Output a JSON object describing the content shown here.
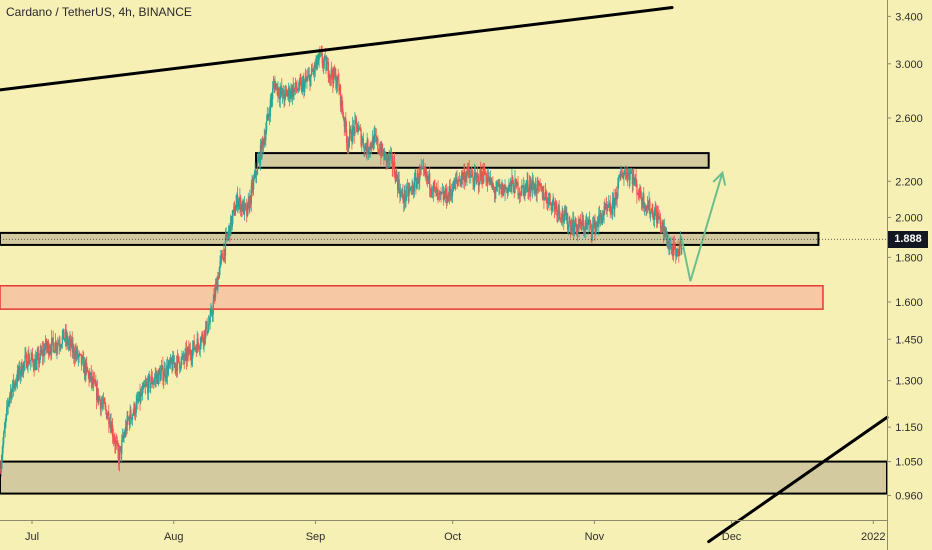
{
  "header": {
    "title": "Cardano / TetherUS, 4h, BINANCE"
  },
  "last_price": "1.888",
  "colors": {
    "background": "#f7f0b5",
    "up_candle": "#26a69a",
    "down_candle": "#ef5350",
    "zone_fill": "#d3cb9f",
    "zone_border": "#000000",
    "red_zone_fill": "#f6c9a4",
    "red_zone_border": "#e53935",
    "projection": "#6cbf8d",
    "trendline": "#000000"
  },
  "chart_data": {
    "type": "candlestick",
    "title": "Cardano / TetherUS, 4h, BINANCE",
    "x_axis": {
      "type": "date",
      "range": [
        "2021-06-24",
        "2022-01-04"
      ],
      "tick_labels": [
        {
          "label": "Jul",
          "date": "2021-07-01"
        },
        {
          "label": "Aug",
          "date": "2021-08-01"
        },
        {
          "label": "Sep",
          "date": "2021-09-01"
        },
        {
          "label": "Oct",
          "date": "2021-10-01"
        },
        {
          "label": "Nov",
          "date": "2021-11-01"
        },
        {
          "label": "Dec",
          "date": "2021-12-01"
        },
        {
          "label": "2022",
          "date": "2022-01-01"
        }
      ]
    },
    "y_axis": {
      "scale": "log",
      "range": [
        0.9,
        3.55
      ],
      "tick_labels": [
        "3.400",
        "3.000",
        "2.600",
        "2.200",
        "2.000",
        "1.800",
        "1.600",
        "1.450",
        "1.300",
        "1.150",
        "1.050",
        "0.960"
      ],
      "tick_values": [
        3.4,
        3.0,
        2.6,
        2.2,
        2.0,
        1.8,
        1.6,
        1.45,
        1.3,
        1.15,
        1.05,
        0.96
      ]
    },
    "price_path": [
      [
        "2021-06-24",
        1.03
      ],
      [
        "2021-06-26",
        1.25
      ],
      [
        "2021-06-28",
        1.32
      ],
      [
        "2021-06-30",
        1.38
      ],
      [
        "2021-07-02",
        1.36
      ],
      [
        "2021-07-04",
        1.42
      ],
      [
        "2021-07-06",
        1.43
      ],
      [
        "2021-07-08",
        1.46
      ],
      [
        "2021-07-10",
        1.41
      ],
      [
        "2021-07-12",
        1.36
      ],
      [
        "2021-07-14",
        1.3
      ],
      [
        "2021-07-16",
        1.23
      ],
      [
        "2021-07-18",
        1.18
      ],
      [
        "2021-07-20",
        1.06
      ],
      [
        "2021-07-22",
        1.17
      ],
      [
        "2021-07-24",
        1.22
      ],
      [
        "2021-07-26",
        1.28
      ],
      [
        "2021-07-28",
        1.31
      ],
      [
        "2021-07-30",
        1.33
      ],
      [
        "2021-08-01",
        1.36
      ],
      [
        "2021-08-03",
        1.37
      ],
      [
        "2021-08-05",
        1.41
      ],
      [
        "2021-08-07",
        1.45
      ],
      [
        "2021-08-09",
        1.52
      ],
      [
        "2021-08-11",
        1.75
      ],
      [
        "2021-08-13",
        1.92
      ],
      [
        "2021-08-15",
        2.1
      ],
      [
        "2021-08-17",
        2.02
      ],
      [
        "2021-08-19",
        2.25
      ],
      [
        "2021-08-21",
        2.5
      ],
      [
        "2021-08-23",
        2.85
      ],
      [
        "2021-08-25",
        2.75
      ],
      [
        "2021-08-27",
        2.8
      ],
      [
        "2021-08-29",
        2.82
      ],
      [
        "2021-08-31",
        2.9
      ],
      [
        "2021-09-02",
        3.05
      ],
      [
        "2021-09-04",
        2.95
      ],
      [
        "2021-09-06",
        2.85
      ],
      [
        "2021-09-08",
        2.45
      ],
      [
        "2021-09-10",
        2.55
      ],
      [
        "2021-09-12",
        2.4
      ],
      [
        "2021-09-14",
        2.45
      ],
      [
        "2021-09-16",
        2.35
      ],
      [
        "2021-09-18",
        2.3
      ],
      [
        "2021-09-20",
        2.1
      ],
      [
        "2021-09-22",
        2.15
      ],
      [
        "2021-09-24",
        2.25
      ],
      [
        "2021-09-26",
        2.2
      ],
      [
        "2021-09-28",
        2.1
      ],
      [
        "2021-09-30",
        2.12
      ],
      [
        "2021-10-02",
        2.2
      ],
      [
        "2021-10-04",
        2.25
      ],
      [
        "2021-10-06",
        2.2
      ],
      [
        "2021-10-08",
        2.25
      ],
      [
        "2021-10-10",
        2.15
      ],
      [
        "2021-10-12",
        2.15
      ],
      [
        "2021-10-14",
        2.18
      ],
      [
        "2021-10-16",
        2.15
      ],
      [
        "2021-10-18",
        2.18
      ],
      [
        "2021-10-20",
        2.15
      ],
      [
        "2021-10-22",
        2.1
      ],
      [
        "2021-10-24",
        2.05
      ],
      [
        "2021-10-26",
        1.98
      ],
      [
        "2021-10-28",
        1.95
      ],
      [
        "2021-10-30",
        1.96
      ],
      [
        "2021-11-01",
        1.95
      ],
      [
        "2021-11-03",
        2.02
      ],
      [
        "2021-11-05",
        2.05
      ],
      [
        "2021-11-07",
        2.25
      ],
      [
        "2021-11-09",
        2.25
      ],
      [
        "2021-11-11",
        2.12
      ],
      [
        "2021-11-13",
        2.05
      ],
      [
        "2021-11-15",
        2.0
      ],
      [
        "2021-11-17",
        1.88
      ],
      [
        "2021-11-19",
        1.8
      ],
      [
        "2021-11-20",
        1.88
      ]
    ],
    "annotations": {
      "zones": [
        {
          "name": "upper-resistance-zone",
          "from": "2021-08-19",
          "to": "2021-11-26",
          "top": 2.37,
          "bottom": 2.28,
          "style": "tan"
        },
        {
          "name": "current-support-zone",
          "from": "2021-06-24",
          "to": "2021-12-20",
          "top": 1.92,
          "bottom": 1.86,
          "style": "tan"
        },
        {
          "name": "demand-zone",
          "from": "2021-06-24",
          "to": "2021-12-21",
          "top": 1.67,
          "bottom": 1.57,
          "style": "red"
        },
        {
          "name": "bottom-support-zone",
          "from": "2021-06-24",
          "to": "2022-01-04",
          "top": 1.05,
          "bottom": 0.965,
          "style": "tan"
        }
      ],
      "trendlines": [
        {
          "name": "upper-trendline",
          "points": [
            [
              "2021-06-24",
              2.8
            ],
            [
              "2021-09-01",
              3.12
            ],
            [
              "2021-11-18",
              3.48
            ]
          ]
        },
        {
          "name": "lower-trendline",
          "points": [
            [
              "2021-11-26",
              0.85
            ],
            [
              "2022-01-04",
              1.18
            ]
          ]
        }
      ],
      "projection_path": [
        [
          "2021-11-20",
          1.9
        ],
        [
          "2021-11-22",
          1.69
        ],
        [
          "2021-11-29",
          2.25
        ]
      ],
      "last_price_line": 1.888
    }
  }
}
